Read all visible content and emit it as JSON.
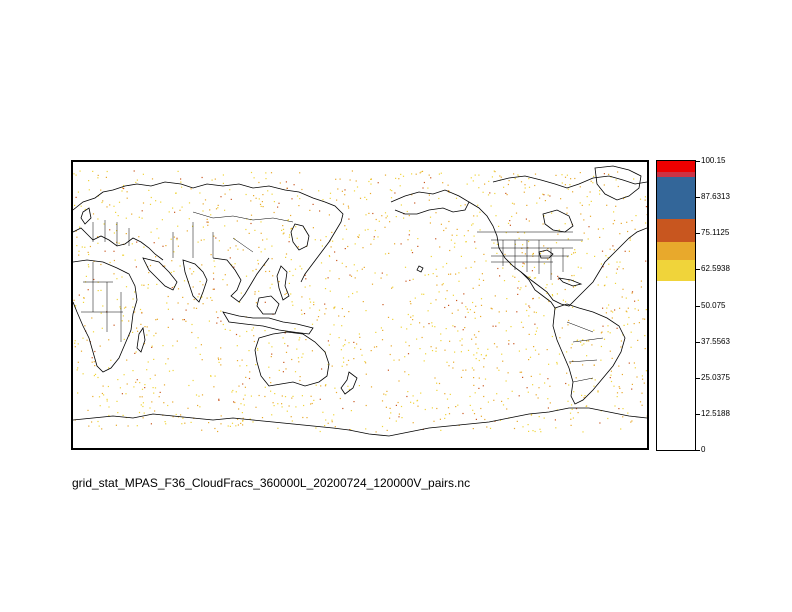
{
  "caption": "grid_stat_MPAS_F36_CloudFracs_360000L_20200724_120000V_pairs.nc",
  "map": {
    "projection": "cylindrical equidistant, Pacific-centered",
    "field": "cloud fraction",
    "coastline_color": "#000000",
    "dot_colors": [
      "#f0d43a",
      "#e8a92c",
      "#c8561f"
    ]
  },
  "colorbar": {
    "labels": [
      "100.15",
      "87.6313",
      "75.1125",
      "62.5938",
      "50.075",
      "37.5563",
      "25.0375",
      "12.5188",
      "0"
    ],
    "bands": [
      {
        "from": 50.075,
        "to": 58.5,
        "color": "#ffffff"
      },
      {
        "from": 58.5,
        "to": 66.0,
        "color": "#f0d43a"
      },
      {
        "from": 66.0,
        "to": 72.0,
        "color": "#e8a92c"
      },
      {
        "from": 72.0,
        "to": 80.0,
        "color": "#c8561f"
      },
      {
        "from": 80.0,
        "to": 94.5,
        "color": "#336699"
      },
      {
        "from": 94.5,
        "to": 96.5,
        "color": "#cc3344"
      },
      {
        "from": 96.5,
        "to": 100.15,
        "color": "#ee0000"
      }
    ]
  }
}
